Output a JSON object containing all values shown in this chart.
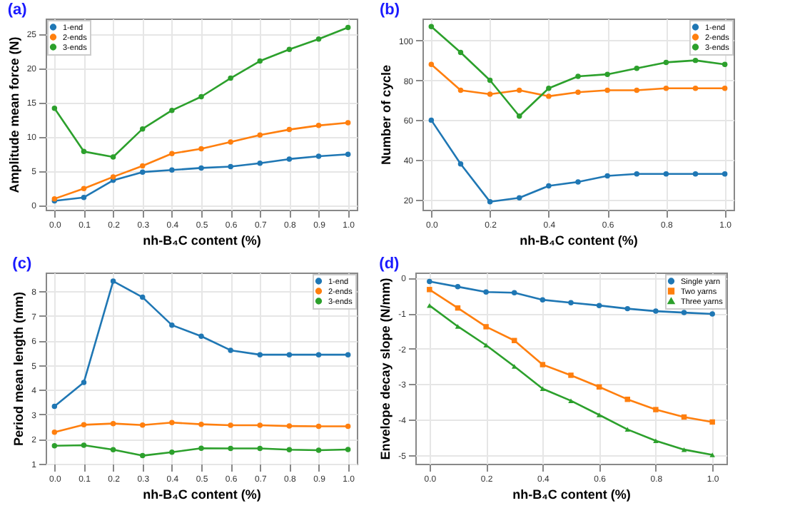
{
  "chart_data": [
    {
      "type": "line",
      "title": "(a)",
      "xlabel": "nh-B₄C content (%)",
      "ylabel": "Amplitude mean force (N)",
      "x": [
        0,
        0.1,
        0.2,
        0.3,
        0.4,
        0.5,
        0.6,
        0.7,
        0.8,
        0.9,
        1.0
      ],
      "xlim": [
        -0.03,
        1.03
      ],
      "xticks": [
        {
          "value": 0,
          "label": "0.0"
        },
        {
          "value": 0.1,
          "label": "0.1"
        },
        {
          "value": 0.2,
          "label": "0.2"
        },
        {
          "value": 0.3,
          "label": "0.3"
        },
        {
          "value": 0.4,
          "label": "0.4"
        },
        {
          "value": 0.5,
          "label": "0.5"
        },
        {
          "value": 0.6,
          "label": "0.6"
        },
        {
          "value": 0.7,
          "label": "0.7"
        },
        {
          "value": 0.8,
          "label": "0.8"
        },
        {
          "value": 0.9,
          "label": "0.9"
        },
        {
          "value": 1,
          "label": "1.0"
        }
      ],
      "ylim": [
        -0.7,
        27.2
      ],
      "yticks": [
        0,
        5,
        10,
        15,
        20,
        25
      ],
      "grid": true,
      "legend": "top left",
      "marker": "circle",
      "series": [
        {
          "name": "1-end",
          "color": "#1f77b4",
          "values": [
            0.6,
            1.1,
            3.6,
            4.8,
            5.1,
            5.4,
            5.6,
            6.1,
            6.7,
            7.1,
            7.4
          ]
        },
        {
          "name": "2-ends",
          "color": "#ff7f0e",
          "values": [
            0.9,
            2.4,
            4.1,
            5.7,
            7.5,
            8.2,
            9.2,
            10.2,
            11.0,
            11.6,
            12.0
          ]
        },
        {
          "name": "3-ends",
          "color": "#2ca02c",
          "values": [
            14.1,
            7.8,
            7.0,
            11.1,
            13.8,
            15.8,
            18.5,
            21.0,
            22.7,
            24.2,
            25.9
          ]
        }
      ]
    },
    {
      "type": "line",
      "title": "(b)",
      "xlabel": "nh-B₄C content (%)",
      "ylabel": "Number of cycle",
      "x": [
        0,
        0.1,
        0.2,
        0.3,
        0.4,
        0.5,
        0.6,
        0.7,
        0.8,
        0.9,
        1.0
      ],
      "xlim": [
        -0.03,
        1.03
      ],
      "xticks": [
        {
          "value": 0,
          "label": "0.0"
        },
        {
          "value": 0.2,
          "label": "0.2"
        },
        {
          "value": 0.4,
          "label": "0.4"
        },
        {
          "value": 0.6,
          "label": "0.6"
        },
        {
          "value": 0.8,
          "label": "0.8"
        },
        {
          "value": 1,
          "label": "1.0"
        }
      ],
      "ylim": [
        15,
        111
      ],
      "yticks": [
        20,
        40,
        60,
        80,
        100
      ],
      "grid": true,
      "legend": "top right",
      "marker": "circle",
      "series": [
        {
          "name": "1-end",
          "color": "#1f77b4",
          "values": [
            60,
            38,
            19,
            21,
            27,
            29,
            32,
            33,
            33,
            33,
            33
          ]
        },
        {
          "name": "2-ends",
          "color": "#ff7f0e",
          "values": [
            88,
            75,
            73,
            75,
            72,
            74,
            75,
            75,
            76,
            76,
            76
          ]
        },
        {
          "name": "3-ends",
          "color": "#2ca02c",
          "values": [
            107,
            94,
            80,
            62,
            76,
            82,
            83,
            86,
            89,
            90,
            88
          ]
        }
      ]
    },
    {
      "type": "line",
      "title": "(c)",
      "xlabel": "nh-B₄C content (%)",
      "ylabel": "Period mean length (mm)",
      "x": [
        0,
        0.1,
        0.2,
        0.3,
        0.4,
        0.5,
        0.6,
        0.7,
        0.8,
        0.9,
        1.0
      ],
      "xlim": [
        -0.03,
        1.03
      ],
      "xticks": [
        {
          "value": 0,
          "label": "0.0"
        },
        {
          "value": 0.1,
          "label": "0.1"
        },
        {
          "value": 0.2,
          "label": "0.2"
        },
        {
          "value": 0.3,
          "label": "0.3"
        },
        {
          "value": 0.4,
          "label": "0.4"
        },
        {
          "value": 0.5,
          "label": "0.5"
        },
        {
          "value": 0.6,
          "label": "0.6"
        },
        {
          "value": 0.7,
          "label": "0.7"
        },
        {
          "value": 0.8,
          "label": "0.8"
        },
        {
          "value": 0.9,
          "label": "0.9"
        },
        {
          "value": 1,
          "label": "1.0"
        }
      ],
      "ylim": [
        1,
        8.75
      ],
      "yticks": [
        1,
        2,
        3,
        4,
        5,
        6,
        7,
        8
      ],
      "grid": true,
      "legend": "top right",
      "marker": "circle",
      "series": [
        {
          "name": "1-end",
          "color": "#1f77b4",
          "values": [
            3.33,
            4.3,
            8.4,
            7.75,
            6.62,
            6.17,
            5.6,
            5.42,
            5.42,
            5.42,
            5.42
          ]
        },
        {
          "name": "2-ends",
          "color": "#ff7f0e",
          "values": [
            2.28,
            2.58,
            2.63,
            2.57,
            2.67,
            2.6,
            2.56,
            2.56,
            2.53,
            2.52,
            2.52
          ]
        },
        {
          "name": "3-ends",
          "color": "#2ca02c",
          "values": [
            1.73,
            1.75,
            1.57,
            1.33,
            1.47,
            1.63,
            1.62,
            1.62,
            1.57,
            1.55,
            1.58
          ]
        }
      ]
    },
    {
      "type": "line",
      "title": "(d)",
      "xlabel": "nh-B₄C content (%)",
      "ylabel": "Envelope decay slope (N/mm)",
      "x": [
        0,
        0.1,
        0.2,
        0.3,
        0.4,
        0.5,
        0.6,
        0.7,
        0.8,
        0.9,
        1.0
      ],
      "xlim": [
        -0.05,
        1.05
      ],
      "xticks": [
        {
          "value": 0,
          "label": "0.0"
        },
        {
          "value": 0.2,
          "label": "0.2"
        },
        {
          "value": 0.4,
          "label": "0.4"
        },
        {
          "value": 0.6,
          "label": "0.6"
        },
        {
          "value": 0.8,
          "label": "0.8"
        },
        {
          "value": 1,
          "label": "1.0"
        }
      ],
      "ylim": [
        -5.25,
        0.15
      ],
      "yticks": [
        -5,
        -4,
        -3,
        -2,
        -1,
        0
      ],
      "grid": true,
      "legend": "top right",
      "series": [
        {
          "name": "Single yarn",
          "color": "#1f77b4",
          "marker": "circle",
          "values": [
            -0.1,
            -0.25,
            -0.4,
            -0.42,
            -0.62,
            -0.7,
            -0.78,
            -0.87,
            -0.94,
            -0.98,
            -1.02
          ]
        },
        {
          "name": "Two yarns",
          "color": "#ff7f0e",
          "marker": "square",
          "values": [
            -0.33,
            -0.85,
            -1.38,
            -1.77,
            -2.45,
            -2.75,
            -3.08,
            -3.43,
            -3.72,
            -3.93,
            -4.07
          ]
        },
        {
          "name": "Three yarns",
          "color": "#2ca02c",
          "marker": "triangle",
          "values": [
            -0.78,
            -1.37,
            -1.9,
            -2.5,
            -3.13,
            -3.47,
            -3.87,
            -4.28,
            -4.6,
            -4.85,
            -5.0
          ]
        }
      ]
    }
  ]
}
